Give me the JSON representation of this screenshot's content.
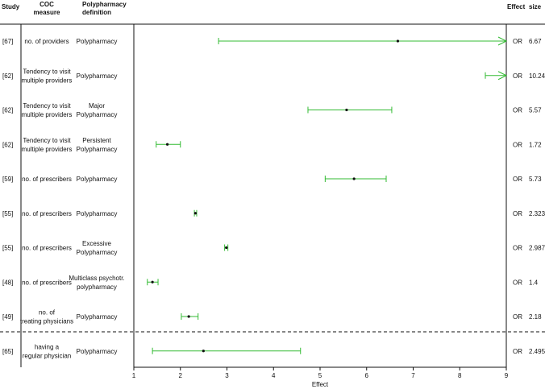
{
  "chart_data": {
    "type": "forest",
    "headers": {
      "study": "Study",
      "coc_measure": [
        "COC",
        "measure"
      ],
      "polypharmacy_definition": [
        "Polypharmacy",
        "definition"
      ],
      "effect_size": [
        "Effect",
        "size"
      ]
    },
    "xlabel": "Effect",
    "xlim": [
      1,
      9
    ],
    "xticks": [
      "1",
      "2",
      "3",
      "4",
      "5",
      "6",
      "7",
      "8",
      "9"
    ],
    "series_color": "#33bb33",
    "rows": [
      {
        "study": "[67]",
        "coc": [
          "no. of providers"
        ],
        "definition": [
          "Polypharmacy"
        ],
        "measure": "OR",
        "effect": 6.67,
        "effect_label": "6.67",
        "lower": 2.82,
        "upper": 9,
        "upper_arrow": true
      },
      {
        "study": "[62]",
        "coc": [
          "Tendency to visit",
          "multiple providers"
        ],
        "definition": [
          "Polypharmacy"
        ],
        "measure": "OR",
        "effect": 10.24,
        "effect_label": "10.24",
        "lower": 8.55,
        "upper": 9,
        "upper_arrow": true
      },
      {
        "study": "[62]",
        "coc": [
          "Tendency to visit",
          "multiple providers"
        ],
        "definition": [
          "Major",
          "Polypharmacy"
        ],
        "measure": "OR",
        "effect": 5.57,
        "effect_label": "5.57",
        "lower": 4.74,
        "upper": 6.54
      },
      {
        "study": "[62]",
        "coc": [
          "Tendency to visit",
          "multiple providers"
        ],
        "definition": [
          "Persistent",
          "Polypharmacy"
        ],
        "measure": "OR",
        "effect": 1.72,
        "effect_label": "1.72",
        "lower": 1.48,
        "upper": 2.0
      },
      {
        "study": "[59]",
        "coc": [
          "no. of prescribers"
        ],
        "definition": [
          "Polypharmacy"
        ],
        "measure": "OR",
        "effect": 5.73,
        "effect_label": "5.73",
        "lower": 5.11,
        "upper": 6.42
      },
      {
        "study": "[55]",
        "coc": [
          "no. of prescribers"
        ],
        "definition": [
          "Polypharmacy"
        ],
        "measure": "OR",
        "effect": 2.323,
        "effect_label": "2.323",
        "lower": 2.3,
        "upper": 2.35
      },
      {
        "study": "[55]",
        "coc": [
          "no. of prescribers"
        ],
        "definition": [
          "Excessive",
          "Polypharmacy"
        ],
        "measure": "OR",
        "effect": 2.987,
        "effect_label": "2.987",
        "lower": 2.95,
        "upper": 3.02
      },
      {
        "study": "[48]",
        "coc": [
          "no. of prescribers"
        ],
        "definition": [
          "Multiclass psychotr.",
          "polypharmacy"
        ],
        "measure": "OR",
        "effect": 1.4,
        "effect_label": "1.4",
        "lower": 1.29,
        "upper": 1.52
      },
      {
        "study": "[49]",
        "coc": [
          "no. of",
          "treating physicians"
        ],
        "definition": [
          "Polypharmacy"
        ],
        "measure": "OR",
        "effect": 2.18,
        "effect_label": "2.18",
        "lower": 2.02,
        "upper": 2.38
      },
      {
        "study": "[65]",
        "coc": [
          "having a",
          "regular physician"
        ],
        "definition": [
          "Polypharmacy"
        ],
        "measure": "OR",
        "effect": 2.495,
        "effect_label": "2.495",
        "lower": 1.4,
        "upper": 4.58
      }
    ]
  }
}
